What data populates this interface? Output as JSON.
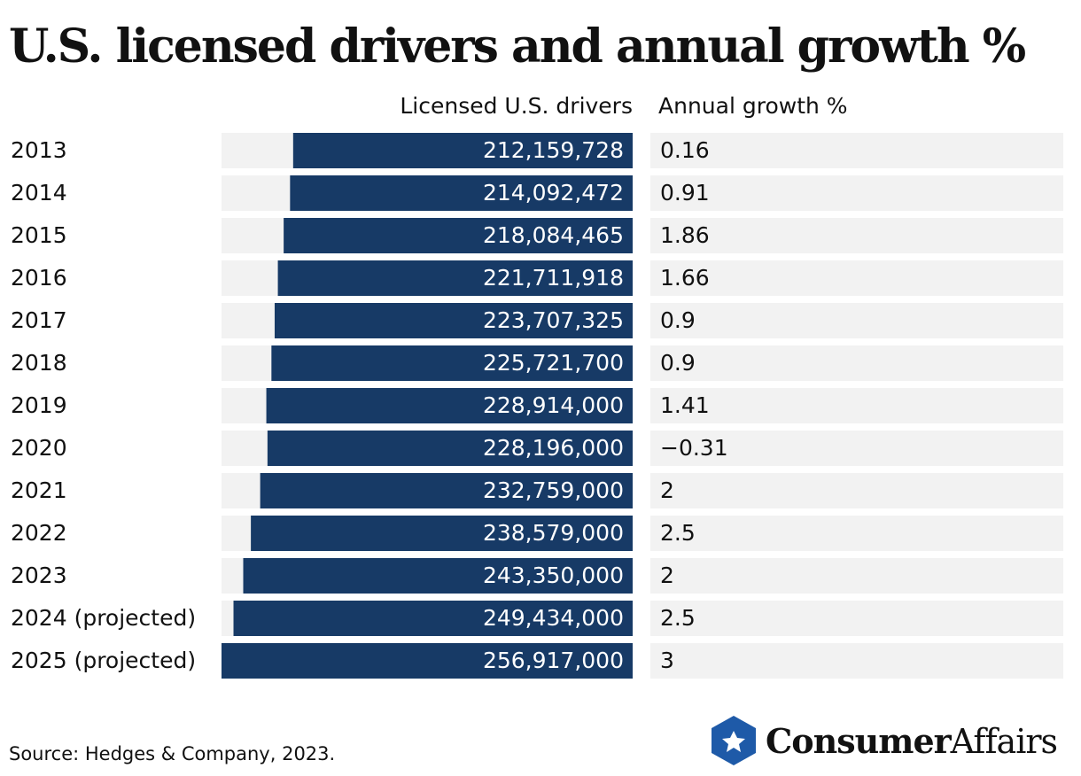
{
  "chart_data": {
    "type": "bar",
    "orientation": "horizontal",
    "title": "U.S. licensed drivers and annual growth %",
    "categories": [
      "2013",
      "2014",
      "2015",
      "2016",
      "2017",
      "2018",
      "2019",
      "2020",
      "2021",
      "2022",
      "2023",
      "2024 (projected)",
      "2025 (projected)"
    ],
    "series": [
      {
        "name": "Licensed U.S. drivers",
        "color": "#173a66",
        "values": [
          212159728,
          214092472,
          218084465,
          221711918,
          223707325,
          225721700,
          228914000,
          228196000,
          232759000,
          238579000,
          243350000,
          249434000,
          256917000
        ],
        "value_labels": [
          "212,159,728",
          "214,092,472",
          "218,084,465",
          "221,711,918",
          "223,707,325",
          "225,721,700",
          "228,914,000",
          "228,196,000",
          "232,759,000",
          "238,579,000",
          "243,350,000",
          "249,434,000",
          "256,917,000"
        ]
      },
      {
        "name": "Annual growth %",
        "values": [
          0.16,
          0.91,
          1.86,
          1.66,
          0.9,
          0.9,
          1.41,
          -0.31,
          2,
          2.5,
          2,
          2.5,
          3
        ],
        "value_labels": [
          "0.16",
          "0.91",
          "1.86",
          "1.66",
          "0.9",
          "0.9",
          "1.41",
          "−0.31",
          "2",
          "2.5",
          "2",
          "2.5",
          "3"
        ]
      }
    ],
    "source": "Source: Hedges & Company, 2023.",
    "logo": [
      "Consumer",
      "Affairs"
    ]
  }
}
